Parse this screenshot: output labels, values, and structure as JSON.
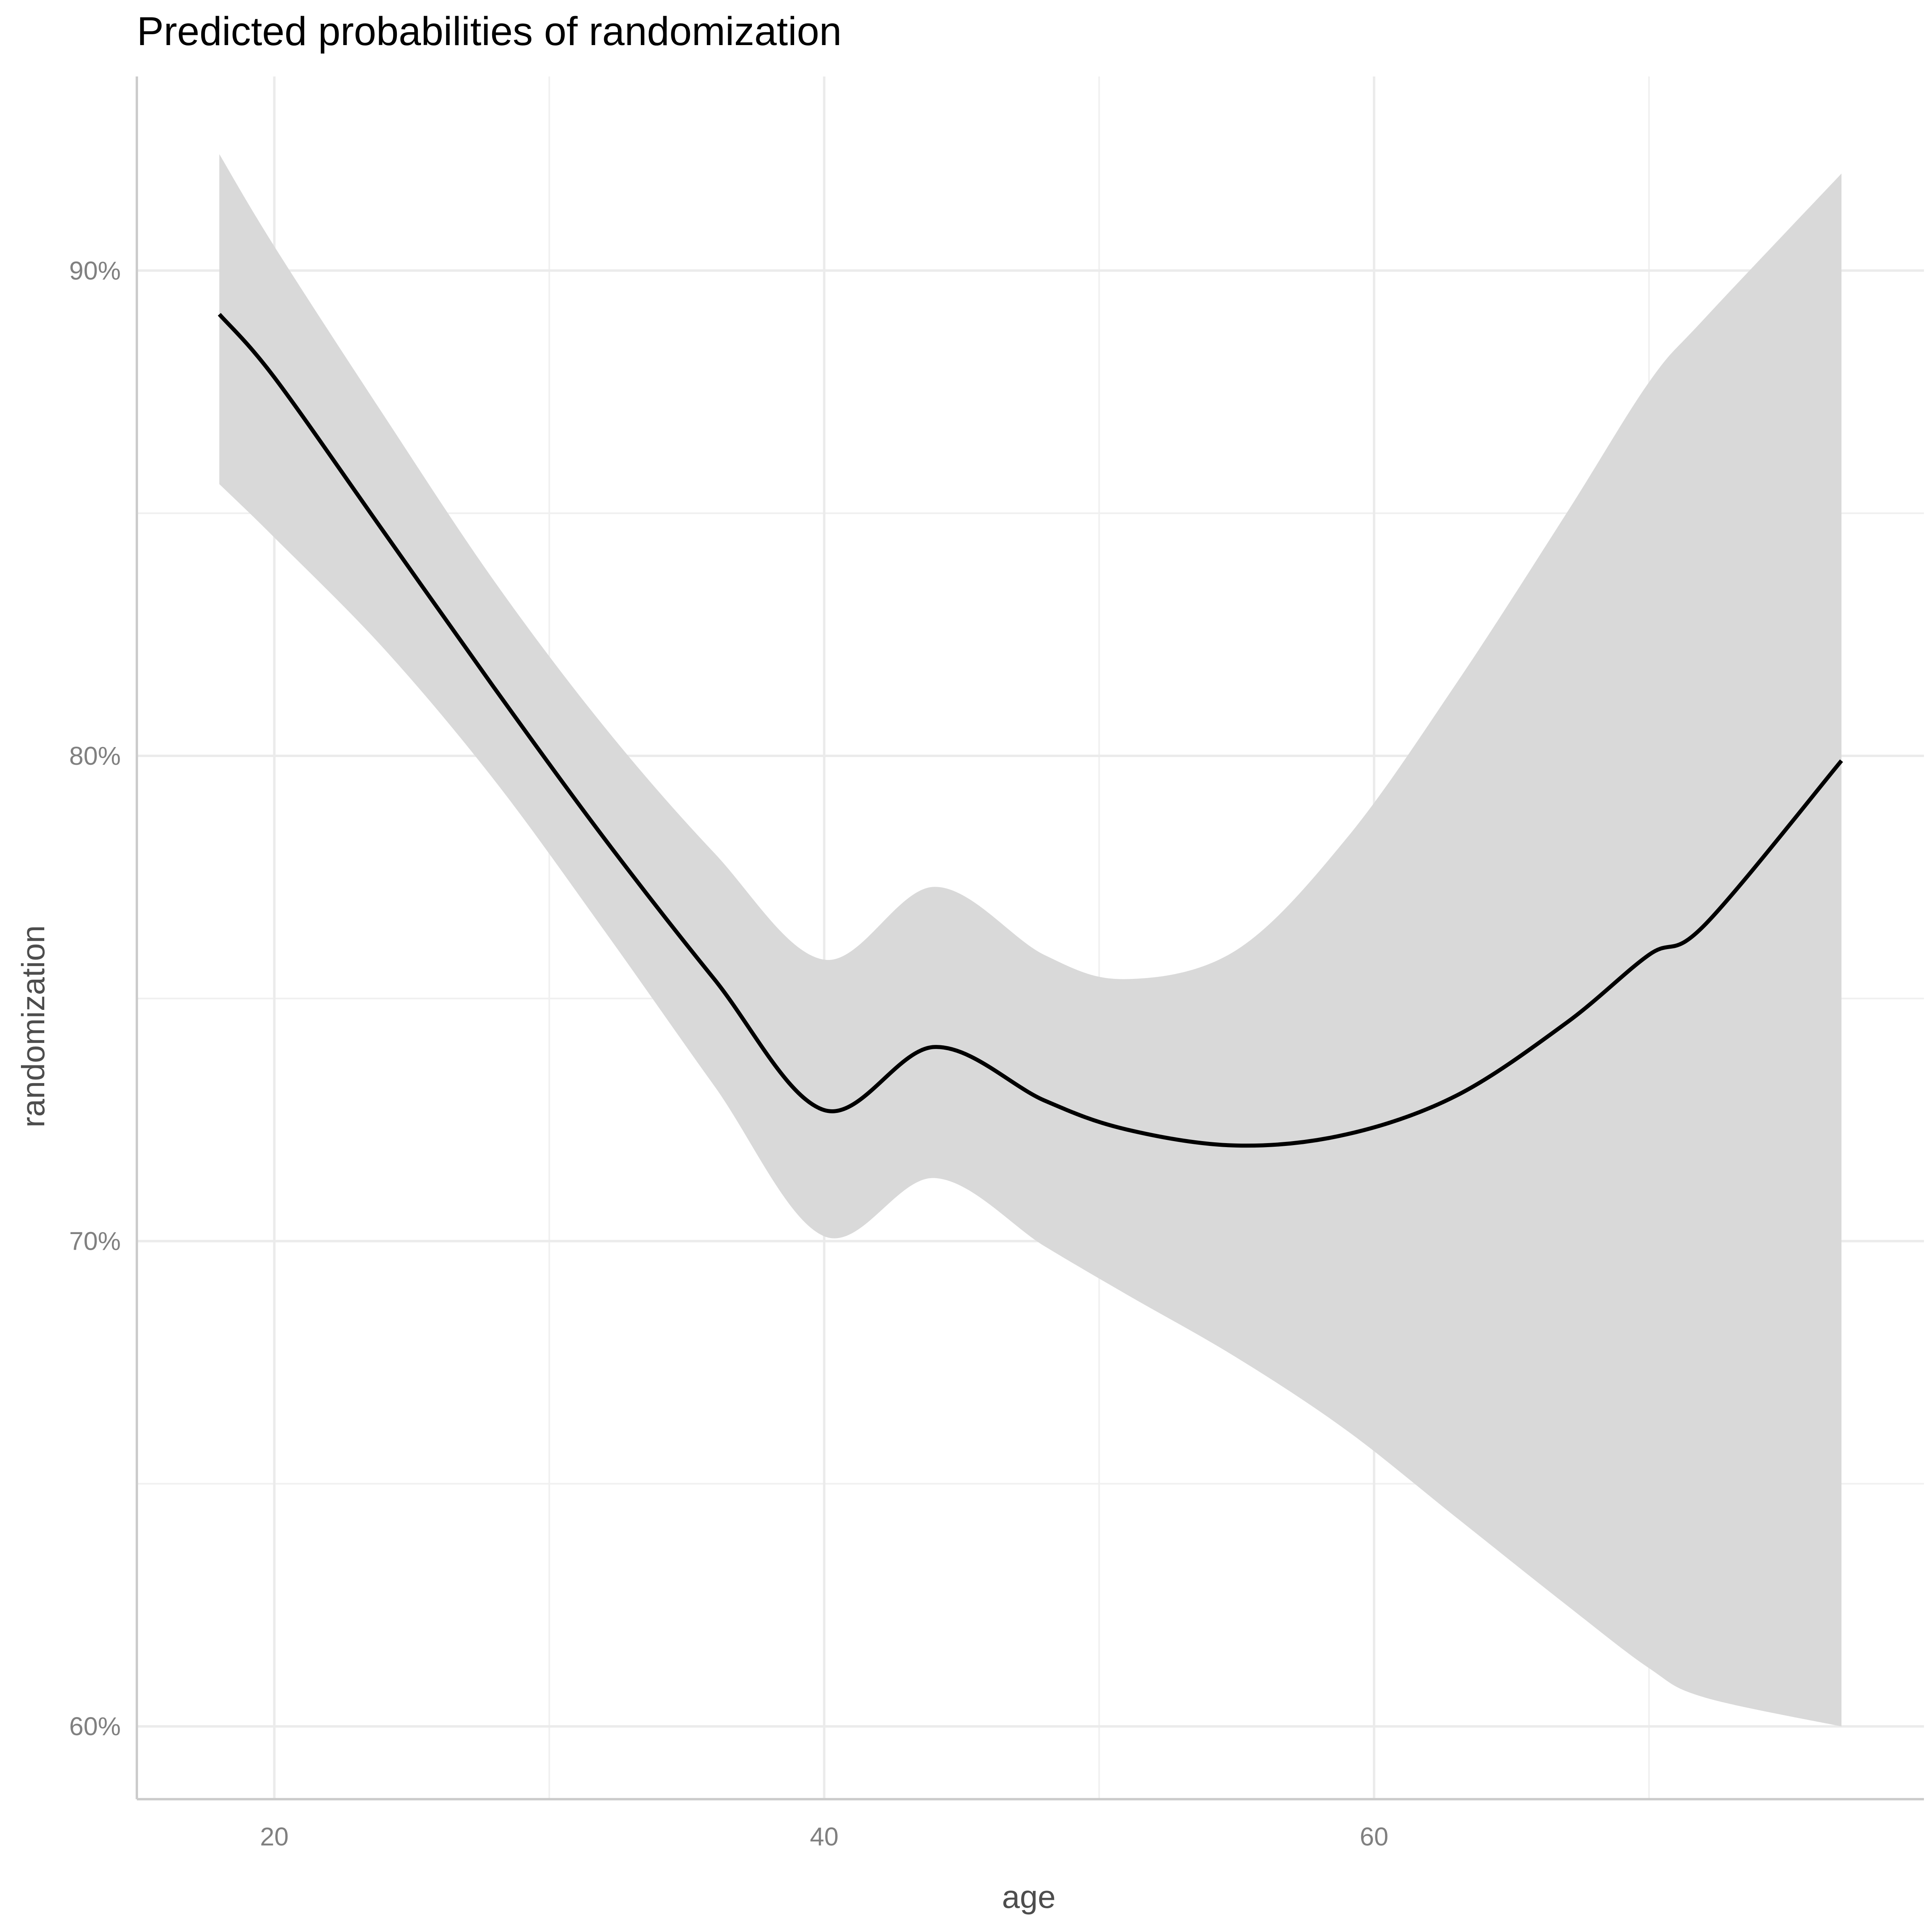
{
  "chart_data": {
    "type": "line",
    "title": "Predicted probabilities of randomization",
    "xlabel": "age",
    "ylabel": "randomization",
    "xlim": [
      15,
      80
    ],
    "ylim": [
      58.5,
      94
    ],
    "x_ticks": [
      20,
      40,
      60
    ],
    "x_tick_labels": [
      "20",
      "40",
      "60"
    ],
    "x_minor_ticks": [
      30,
      50,
      70
    ],
    "y_ticks": [
      60,
      70,
      80,
      90
    ],
    "y_tick_labels": [
      "60%",
      "70%",
      "80%",
      "90%"
    ],
    "y_minor_ticks": [
      65,
      75,
      85
    ],
    "grid": true,
    "legend": "none",
    "colors": {
      "line": "#000000",
      "ribbon": "#d9d9d9",
      "grid": "#ebebeb",
      "axis": "#cccccc"
    },
    "series": [
      {
        "x": [
          18,
          20,
          24,
          28,
          32,
          36,
          40,
          44,
          48,
          51,
          55,
          59,
          63,
          67,
          70,
          72,
          77
        ],
        "y": [
          89.1,
          87.8,
          84.6,
          81.4,
          78.3,
          75.4,
          72.7,
          74.0,
          72.9,
          72.3,
          71.97,
          72.2,
          73.0,
          74.5,
          75.9,
          76.5,
          79.9
        ],
        "lower": [
          85.6,
          84.5,
          82.2,
          79.5,
          76.4,
          73.2,
          70.1,
          71.3,
          69.9,
          68.9,
          67.6,
          66.1,
          64.3,
          62.5,
          61.2,
          60.6,
          60.0
        ],
        "upper": [
          92.4,
          90.5,
          87.0,
          83.6,
          80.6,
          78.0,
          75.8,
          77.3,
          75.9,
          75.4,
          76.0,
          78.3,
          81.5,
          85.0,
          87.7,
          89.0,
          92.0
        ]
      }
    ]
  }
}
